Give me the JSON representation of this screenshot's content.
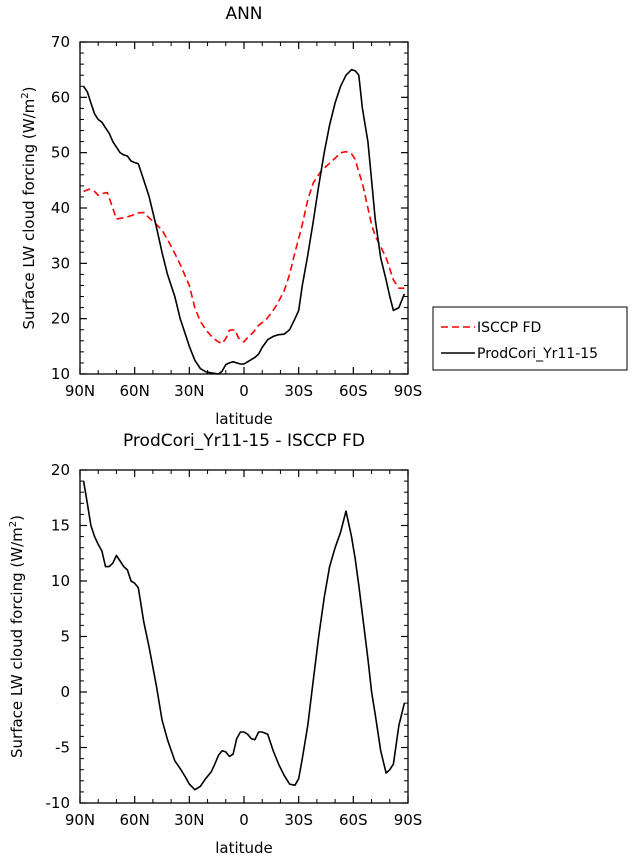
{
  "chart_data": [
    {
      "type": "line",
      "title": "ANN",
      "xlabel": "latitude",
      "ylabel": "Surface LW cloud forcing (W/m²)",
      "ylabel_main": "Surface LW cloud forcing (W/m",
      "ylabel_sup": "2",
      "ylabel_end": ")",
      "xlim": [
        90,
        -90
      ],
      "ylim": [
        10,
        70
      ],
      "xticks": [
        90,
        60,
        30,
        0,
        -30,
        -60,
        -90
      ],
      "xtick_labels": [
        "90N",
        "60N",
        "30N",
        "0",
        "30S",
        "60S",
        "90S"
      ],
      "yticks": [
        10,
        20,
        30,
        40,
        50,
        60,
        70
      ],
      "ytick_labels": [
        "10",
        "20",
        "30",
        "40",
        "50",
        "60",
        "70"
      ],
      "legend_position": "outside-right",
      "series": [
        {
          "name": "ISCCP FD",
          "color": "#ff0000",
          "dash": "dashed",
          "x": [
            88,
            85,
            82,
            80,
            78,
            75,
            72,
            70,
            65,
            62,
            58,
            55,
            52,
            48,
            45,
            42,
            38,
            35,
            30,
            27,
            24,
            20,
            17,
            14,
            12,
            10,
            8,
            5,
            3,
            1,
            0,
            -2,
            -5,
            -8,
            -12,
            -15,
            -18,
            -22,
            -25,
            -28,
            -32,
            -35,
            -38,
            -42,
            -45,
            -50,
            -53,
            -56,
            -59,
            -61,
            -63,
            -65,
            -68,
            -70,
            -72,
            -75,
            -78,
            -80,
            -82,
            -85,
            -88
          ],
          "y": [
            43,
            43.4,
            43,
            42.3,
            42.6,
            42.8,
            40,
            38,
            38.3,
            38.6,
            39.1,
            39.2,
            38.2,
            37,
            36,
            34.3,
            31.8,
            29.8,
            26,
            22,
            19.5,
            17.6,
            16.5,
            15.8,
            15.5,
            16.4,
            17.9,
            18,
            16.5,
            16,
            15.8,
            16.6,
            17.5,
            18.8,
            19.8,
            21,
            22.5,
            25,
            28,
            32,
            37,
            41.5,
            44.5,
            46.5,
            47.5,
            49,
            50,
            50.2,
            49.8,
            48.8,
            46.5,
            44.5,
            40,
            37,
            35,
            33,
            31,
            29,
            27,
            25.5,
            25.5
          ]
        },
        {
          "name": "ProdCori_Yr11-15",
          "color": "#000000",
          "dash": "solid",
          "x": [
            88,
            86,
            84,
            82,
            80,
            78,
            76,
            74,
            72,
            70,
            68,
            66,
            64,
            62,
            60,
            58,
            55,
            52,
            48,
            45,
            42,
            38,
            35,
            32,
            30,
            27,
            24,
            21,
            18,
            16,
            14,
            12,
            10,
            8,
            6,
            4,
            2,
            0,
            -2,
            -4,
            -6,
            -8,
            -10,
            -13,
            -16,
            -19,
            -22,
            -25,
            -28,
            -30,
            -32,
            -35,
            -38,
            -41,
            -44,
            -47,
            -50,
            -53,
            -56,
            -59,
            -61,
            -63,
            -65,
            -68,
            -70,
            -72,
            -75,
            -78,
            -80,
            -82,
            -85,
            -88
          ],
          "y": [
            62,
            61,
            59,
            57,
            56,
            55.5,
            54.5,
            53.5,
            52,
            51,
            50,
            49.6,
            49.4,
            48.5,
            48.2,
            48,
            45,
            42,
            36.5,
            32,
            28,
            24,
            20,
            17,
            15,
            12.5,
            11,
            10.4,
            10.2,
            10.1,
            10,
            10.5,
            11.7,
            12,
            12.2,
            12,
            11.8,
            11.8,
            12.2,
            12.6,
            13,
            13.6,
            14.8,
            16.2,
            16.8,
            17.1,
            17.2,
            18,
            20,
            21.5,
            26,
            31.5,
            37.5,
            44,
            50,
            55,
            59,
            62,
            64,
            65,
            64.8,
            64,
            58,
            52,
            45,
            38,
            31,
            27,
            24,
            21.5,
            22,
            24.5
          ]
        }
      ]
    },
    {
      "type": "line",
      "title": "ProdCori_Yr11-15 - ISCCP FD",
      "xlabel": "latitude",
      "ylabel": "Surface LW cloud forcing (W/m²)",
      "ylabel_main": "Surface LW cloud forcing (W/m",
      "ylabel_sup": "2",
      "ylabel_end": ")",
      "xlim": [
        90,
        -90
      ],
      "ylim": [
        -10,
        20
      ],
      "xticks": [
        90,
        60,
        30,
        0,
        -30,
        -60,
        -90
      ],
      "xtick_labels": [
        "90N",
        "60N",
        "30N",
        "0",
        "30S",
        "60S",
        "90S"
      ],
      "yticks": [
        -10,
        -5,
        0,
        5,
        10,
        15,
        20
      ],
      "ytick_labels": [
        "-10",
        "-5",
        "0",
        "5",
        "10",
        "15",
        "20"
      ],
      "series": [
        {
          "color": "#000000",
          "dash": "solid",
          "x": [
            88,
            86,
            84,
            82,
            80,
            78,
            76,
            74,
            72,
            70,
            68,
            66,
            64,
            62,
            60,
            58,
            55,
            52,
            48,
            45,
            42,
            38,
            35,
            32,
            30,
            27,
            24,
            21,
            18,
            16,
            14,
            12,
            10,
            8,
            6,
            4,
            2,
            0,
            -2,
            -4,
            -6,
            -8,
            -10,
            -13,
            -16,
            -19,
            -22,
            -25,
            -28,
            -30,
            -32,
            -35,
            -38,
            -41,
            -44,
            -47,
            -50,
            -53,
            -56,
            -59,
            -61,
            -63,
            -65,
            -68,
            -70,
            -72,
            -75,
            -78,
            -80,
            -82,
            -85,
            -88
          ],
          "y": [
            19,
            17,
            15,
            14,
            13.3,
            12.7,
            11.3,
            11.3,
            11.6,
            12.3,
            11.8,
            11.3,
            11,
            10,
            9.8,
            9.4,
            6.3,
            4,
            0.5,
            -2.5,
            -4.3,
            -6.2,
            -6.9,
            -7.7,
            -8.3,
            -8.8,
            -8.5,
            -7.8,
            -7.2,
            -6.5,
            -5.7,
            -5.3,
            -5.4,
            -5.8,
            -5.6,
            -4.2,
            -3.6,
            -3.6,
            -3.8,
            -4.2,
            -4.3,
            -3.6,
            -3.6,
            -3.8,
            -5.3,
            -6.5,
            -7.5,
            -8.3,
            -8.4,
            -7.8,
            -6,
            -3,
            1,
            5,
            8.5,
            11.3,
            13,
            14.4,
            16.3,
            14,
            12,
            9.6,
            7,
            3,
            0,
            -2,
            -5.3,
            -7.3,
            -7,
            -6.5,
            -3,
            -1
          ]
        }
      ]
    }
  ]
}
